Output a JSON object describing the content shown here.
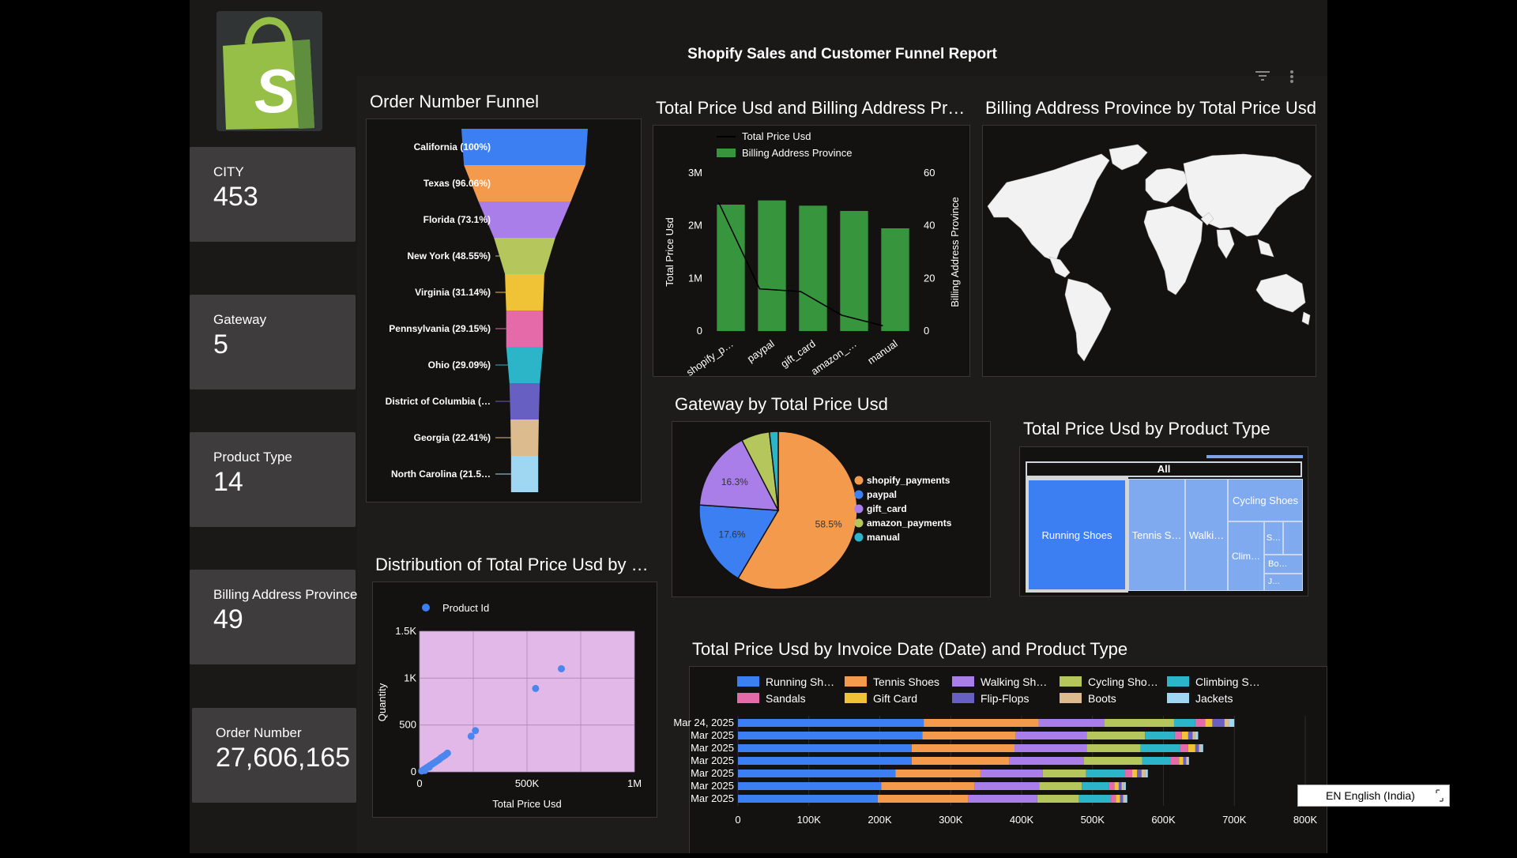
{
  "report_title": "Shopify Sales and Customer Funnel Report",
  "logo": {
    "icon": "shopify-bag-icon",
    "letter": "S"
  },
  "cards": [
    {
      "label": "CITY",
      "value": "453"
    },
    {
      "label": "Gateway",
      "value": "5"
    },
    {
      "label": "Product Type",
      "value": "14"
    },
    {
      "label": "Billing Address Province",
      "value": "49"
    },
    {
      "label": "Order Number",
      "value": "27,606,165"
    }
  ],
  "toolbar": {
    "filter_icon": "filter-icon",
    "more_icon": "more-options-icon"
  },
  "funnel": {
    "title": "Order Number Funnel",
    "stages": [
      {
        "label": "California (100%)",
        "pct": 100,
        "color": "#3b7ff2"
      },
      {
        "label": "Texas (96.06%)",
        "pct": 96.06,
        "color": "#f39a4c"
      },
      {
        "label": "Florida (73.1%)",
        "pct": 73.1,
        "color": "#a97ee8"
      },
      {
        "label": "New York (48.55%)",
        "pct": 48.55,
        "color": "#b5c65d"
      },
      {
        "label": "Virginia (31.14%)",
        "pct": 31.14,
        "color": "#efc335"
      },
      {
        "label": "Pennsylvania (29.15%)",
        "pct": 29.15,
        "color": "#e46aa9"
      },
      {
        "label": "Ohio (29.09%)",
        "pct": 29.09,
        "color": "#2cb5c8"
      },
      {
        "label": "District of Columbia (…",
        "pct": 24,
        "color": "#6760c2"
      },
      {
        "label": "Georgia (22.41%)",
        "pct": 22.41,
        "color": "#dcbb8e"
      },
      {
        "label": "North Carolina (21.5…",
        "pct": 21.5,
        "color": "#9fd6f2"
      }
    ]
  },
  "combo": {
    "title": "Total Price Usd and Billing Address Pr…",
    "legend_line": "Total Price Usd",
    "legend_bar": "Billing Address Province",
    "ylabel_left": "Total Price Usd",
    "ylabel_right": "Billing Address Province",
    "left_ticks": [
      "0",
      "1M",
      "2M",
      "3M"
    ],
    "right_ticks": [
      "0",
      "20",
      "40",
      "60"
    ],
    "categories": [
      "shopify_p…",
      "paypal",
      "gift_card",
      "amazon_…",
      "manual"
    ],
    "bar_values": [
      2400000,
      2480000,
      2380000,
      2280000,
      1950000
    ],
    "line_values": [
      49,
      16,
      15,
      6,
      2
    ],
    "left_max": 3000000,
    "right_max": 60,
    "bar_color": "#37963d"
  },
  "map": {
    "title": "Billing Address Province by Total Price Usd"
  },
  "pie": {
    "title": "Gateway by Total Price Usd",
    "slices": [
      {
        "name": "shopify_payments",
        "value": 58.5,
        "label": "58.5%",
        "color": "#f39a4c"
      },
      {
        "name": "paypal",
        "value": 17.6,
        "label": "17.6%",
        "color": "#3b7ff2"
      },
      {
        "name": "gift_card",
        "value": 16.3,
        "label": "16.3%",
        "color": "#a97ee8"
      },
      {
        "name": "amazon_payments",
        "value": 5.8,
        "label": "",
        "color": "#b5c65d"
      },
      {
        "name": "manual",
        "value": 1.8,
        "label": "",
        "color": "#2cb5c8"
      }
    ]
  },
  "treemap": {
    "title": "Total Price Usd by Product Type",
    "root_label": "All",
    "items": [
      {
        "label": "Running Shoes"
      },
      {
        "label": "Tennis S…"
      },
      {
        "label": "Walki…"
      },
      {
        "label": "Cycling Shoes"
      },
      {
        "label": "S…"
      },
      {
        "label": "Clim…"
      },
      {
        "label": "Bo…"
      },
      {
        "label": "J…"
      }
    ]
  },
  "scatter": {
    "title": "Distribution of Total Price Usd by …",
    "legend": "Product Id",
    "xlabel": "Total Price Usd",
    "ylabel": "Quantity",
    "x_ticks": [
      "0",
      "500K",
      "1M"
    ],
    "y_ticks": [
      "0",
      "500",
      "1K",
      "1.5K"
    ],
    "xlim": [
      0,
      1000000
    ],
    "ylim": [
      0,
      1500
    ],
    "points": [
      [
        10000,
        10
      ],
      [
        20000,
        25
      ],
      [
        30000,
        40
      ],
      [
        40000,
        55
      ],
      [
        50000,
        70
      ],
      [
        60000,
        85
      ],
      [
        70000,
        100
      ],
      [
        80000,
        115
      ],
      [
        90000,
        130
      ],
      [
        100000,
        150
      ],
      [
        110000,
        165
      ],
      [
        120000,
        180
      ],
      [
        130000,
        200
      ],
      [
        25000,
        15
      ],
      [
        45000,
        50
      ],
      [
        240000,
        380
      ],
      [
        260000,
        440
      ],
      [
        540000,
        890
      ],
      [
        660000,
        1100
      ]
    ]
  },
  "stacked": {
    "title": "Total Price Usd by Invoice Date (Date) and Product Type",
    "legend": [
      {
        "name": "Running Sh…",
        "color": "#3b7ff2"
      },
      {
        "name": "Tennis Shoes",
        "color": "#f39a4c"
      },
      {
        "name": "Walking Sh…",
        "color": "#a97ee8"
      },
      {
        "name": "Cycling Sho…",
        "color": "#b5c65d"
      },
      {
        "name": "Climbing S…",
        "color": "#2cb5c8"
      },
      {
        "name": "Sandals",
        "color": "#e46aa9"
      },
      {
        "name": "Gift Card",
        "color": "#efc335"
      },
      {
        "name": "Flip-Flops",
        "color": "#6760c2"
      },
      {
        "name": "Boots",
        "color": "#dcbb8e"
      },
      {
        "name": "Jackets",
        "color": "#9fd6f2"
      }
    ],
    "row_labels": [
      "Mar 24, 2025",
      "Mar 2025",
      "Mar 2025",
      "Mar 2025",
      "Mar 2025",
      "Mar 2025",
      "Mar 2025"
    ],
    "x_ticks": [
      "0",
      "100K",
      "200K",
      "300K",
      "400K",
      "500K",
      "600K",
      "700K",
      "800K"
    ],
    "xmax": 800000,
    "rows": [
      [
        262000,
        162000,
        93000,
        98000,
        30000,
        14000,
        10000,
        17000,
        7000,
        7000
      ],
      [
        260000,
        132000,
        100000,
        82000,
        42000,
        10000,
        9000,
        6000,
        4000,
        4000
      ],
      [
        245000,
        145000,
        102000,
        76000,
        55000,
        12000,
        10000,
        5000,
        3000,
        3000
      ],
      [
        245000,
        138000,
        105000,
        82000,
        40000,
        12000,
        6000,
        4000,
        2000,
        2000
      ],
      [
        222000,
        120000,
        88000,
        61000,
        55000,
        10000,
        7000,
        6000,
        5000,
        4000
      ],
      [
        202000,
        132000,
        91000,
        60000,
        38000,
        8000,
        6000,
        4000,
        3000,
        3000
      ],
      [
        197000,
        128000,
        97000,
        59000,
        45000,
        7000,
        6000,
        4000,
        3000,
        3000
      ]
    ]
  },
  "language": "EN English (India)"
}
